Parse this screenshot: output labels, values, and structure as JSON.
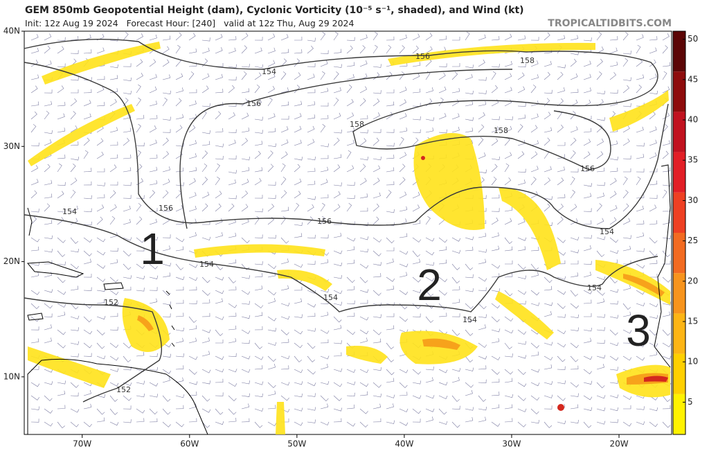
{
  "header": {
    "title": "GEM 850mb Geopotential Height (dam), Cyclonic Vorticity (10⁻⁵ s⁻¹, shaded), and Wind (kt)",
    "subtitle": "Init: 12z Aug 19 2024   Forecast Hour: [240]   valid at 12z Thu, Aug 29 2024",
    "watermark": "TROPICALTIDBITS.COM"
  },
  "map": {
    "lonlim": [
      -75.4,
      -15.1
    ],
    "latlim": [
      5,
      40
    ],
    "lon_ticks": [
      {
        "value": -70,
        "label": "70W"
      },
      {
        "value": -60,
        "label": "60W"
      },
      {
        "value": -50,
        "label": "50W"
      },
      {
        "value": -40,
        "label": "40W"
      },
      {
        "value": -30,
        "label": "30W"
      },
      {
        "value": -20,
        "label": "20W"
      }
    ],
    "lat_ticks": [
      {
        "value": 10,
        "label": "10N"
      },
      {
        "value": 20,
        "label": "20N"
      },
      {
        "value": 30,
        "label": "30N"
      },
      {
        "value": 40,
        "label": "40N"
      }
    ],
    "contour_labels": [
      "154",
      "154",
      "156",
      "158",
      "158",
      "158",
      "156",
      "156",
      "156",
      "156",
      "154",
      "154",
      "152",
      "154",
      "154",
      "154",
      "152"
    ],
    "markers": [
      "1",
      "2",
      "3"
    ]
  },
  "colorbar": {
    "lim": [
      1,
      51
    ],
    "ticks": [
      5,
      10,
      15,
      20,
      25,
      30,
      35,
      40,
      45,
      50
    ],
    "colors": [
      "#fff200",
      "#ffd000",
      "#fdb515",
      "#f7941d",
      "#f26b21",
      "#ee4023",
      "#e21f26",
      "#c1121f",
      "#8e0c0c",
      "#5c0606"
    ]
  }
}
